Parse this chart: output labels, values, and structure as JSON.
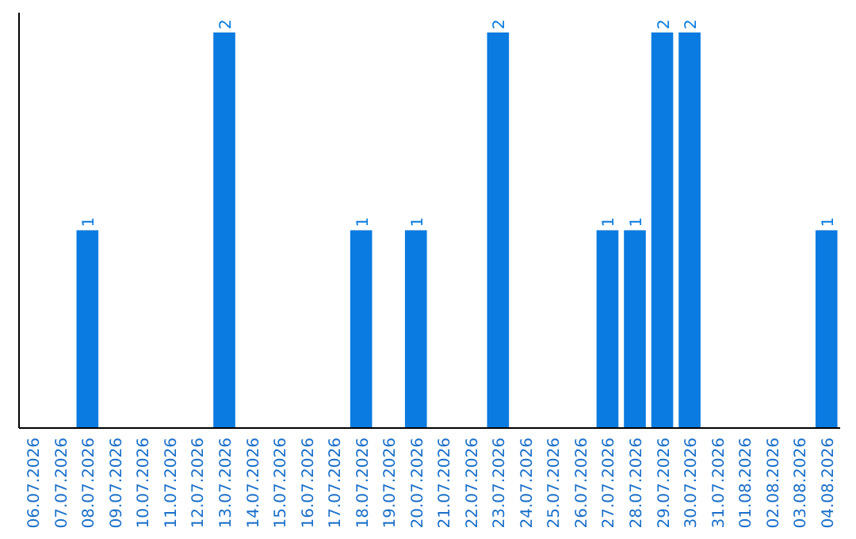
{
  "chart_data": {
    "type": "bar",
    "categories": [
      "06.07.2026",
      "07.07.2026",
      "08.07.2026",
      "09.07.2026",
      "10.07.2026",
      "11.07.2026",
      "12.07.2026",
      "13.07.2026",
      "14.07.2026",
      "15.07.2026",
      "16.07.2026",
      "17.07.2026",
      "18.07.2026",
      "19.07.2026",
      "20.07.2026",
      "21.07.2026",
      "22.07.2026",
      "23.07.2026",
      "24.07.2026",
      "25.07.2026",
      "26.07.2026",
      "27.07.2026",
      "28.07.2026",
      "29.07.2026",
      "30.07.2026",
      "31.07.2026",
      "01.08.2026",
      "02.08.2026",
      "03.08.2026",
      "04.08.2026"
    ],
    "values": [
      0,
      0,
      1,
      0,
      0,
      0,
      0,
      2,
      0,
      0,
      0,
      0,
      1,
      0,
      1,
      0,
      0,
      2,
      0,
      0,
      0,
      1,
      1,
      2,
      2,
      0,
      0,
      0,
      0,
      1
    ],
    "value_labels": [
      null,
      null,
      "1",
      null,
      null,
      null,
      null,
      "2",
      null,
      null,
      null,
      null,
      "1",
      null,
      "1",
      null,
      null,
      "2",
      null,
      null,
      null,
      "1",
      "1",
      "2",
      "2",
      null,
      null,
      null,
      null,
      "1"
    ],
    "color": "#0a7be0",
    "ylim": [
      0,
      2.1
    ],
    "tick_labels": "x"
  }
}
